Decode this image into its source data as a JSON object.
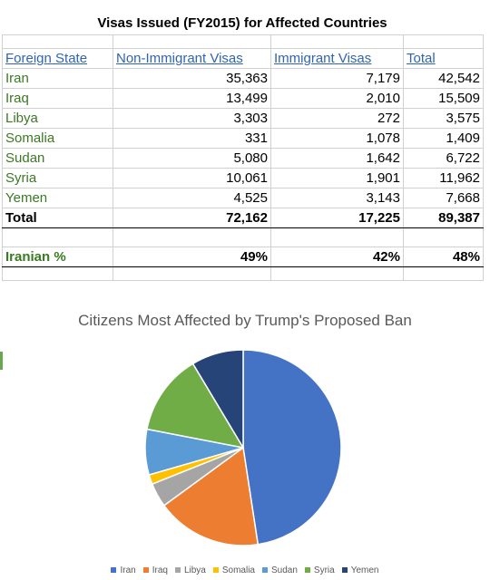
{
  "table": {
    "title": "Visas Issued (FY2015) for Affected Countries",
    "headers": [
      "Foreign State",
      "Non-Immigrant Visas",
      "Immigrant Visas",
      "Total"
    ],
    "rows": [
      {
        "state": "Iran",
        "non_immigrant": "35,363",
        "immigrant": "7,179",
        "total": "42,542"
      },
      {
        "state": "Iraq",
        "non_immigrant": "13,499",
        "immigrant": "2,010",
        "total": "15,509"
      },
      {
        "state": "Libya",
        "non_immigrant": "3,303",
        "immigrant": "272",
        "total": "3,575"
      },
      {
        "state": "Somalia",
        "non_immigrant": "331",
        "immigrant": "1,078",
        "total": "1,409"
      },
      {
        "state": "Sudan",
        "non_immigrant": "5,080",
        "immigrant": "1,642",
        "total": "6,722"
      },
      {
        "state": "Syria",
        "non_immigrant": "10,061",
        "immigrant": "1,901",
        "total": "11,962"
      },
      {
        "state": "Yemen",
        "non_immigrant": "4,525",
        "immigrant": "3,143",
        "total": "7,668"
      }
    ],
    "total_row": {
      "label": "Total",
      "non_immigrant": "72,162",
      "immigrant": "17,225",
      "total": "89,387"
    },
    "percent_row": {
      "label": "Iranian %",
      "non_immigrant": "49%",
      "immigrant": "42%",
      "total": "48%"
    }
  },
  "chart_data": {
    "type": "pie",
    "title": "Citizens Most Affected by Trump's Proposed Ban",
    "categories": [
      "Iran",
      "Iraq",
      "Libya",
      "Somalia",
      "Sudan",
      "Syria",
      "Yemen"
    ],
    "values": [
      42542,
      15509,
      3575,
      1409,
      6722,
      11962,
      7668
    ],
    "colors": [
      "#4472C4",
      "#ED7D31",
      "#A5A5A5",
      "#FFC000",
      "#5B9BD5",
      "#70AD47",
      "#264478"
    ],
    "legend_position": "bottom"
  }
}
